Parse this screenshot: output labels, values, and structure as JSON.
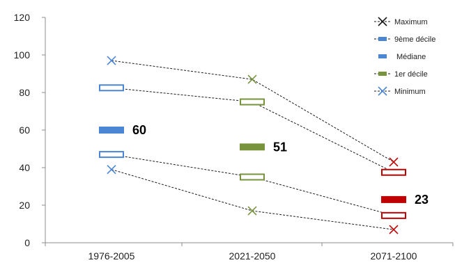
{
  "chart_data": {
    "type": "line",
    "categories": [
      "1976-2005",
      "2021-2050",
      "2071-2100"
    ],
    "ylim": [
      0,
      120
    ],
    "yticks": [
      0,
      20,
      40,
      60,
      80,
      100,
      120
    ],
    "grid": false,
    "legend_position": "top-right",
    "category_colors": [
      "#4a86d4",
      "#77933c",
      "#c00000"
    ],
    "series": [
      {
        "name": "Maximum",
        "values": [
          97,
          87,
          43
        ]
      },
      {
        "name": "9ème décile",
        "values": [
          82.5,
          75,
          37.5
        ]
      },
      {
        "name": "Médiane",
        "values": [
          60,
          51,
          23
        ]
      },
      {
        "name": "1er décile",
        "values": [
          47,
          35,
          14.5
        ]
      },
      {
        "name": "Minimum",
        "values": [
          39,
          17,
          7
        ]
      }
    ],
    "data_labels": [
      "60",
      "51",
      "23"
    ]
  }
}
